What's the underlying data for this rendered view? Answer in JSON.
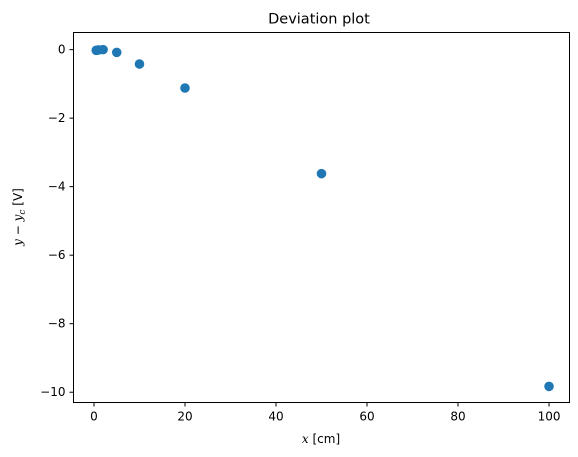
{
  "chart_data": {
    "type": "scatter",
    "title": "Deviation plot",
    "xlabel": {
      "var": "x",
      "unit": " [cm]"
    },
    "ylabel": {
      "var": "y",
      "minus": " − ",
      "sym": "y",
      "sub": "c",
      "unit": " [V]"
    },
    "xlim": [
      -4.5,
      104.5
    ],
    "ylim": [
      -10.3,
      0.5
    ],
    "xticks": [
      0,
      20,
      40,
      60,
      80,
      100
    ],
    "xtick_labels": [
      "0",
      "20",
      "40",
      "60",
      "80",
      "100"
    ],
    "yticks": [
      0,
      -2,
      -4,
      -6,
      -8,
      -10
    ],
    "ytick_labels": [
      "0",
      "−2",
      "−4",
      "−6",
      "−8",
      "−10"
    ],
    "grid": false,
    "marker_color": "#1f77b4",
    "points": [
      {
        "x": 0.5,
        "y": -0.02
      },
      {
        "x": 1,
        "y": -0.01
      },
      {
        "x": 2,
        "y": 0.0
      },
      {
        "x": 5,
        "y": -0.08
      },
      {
        "x": 10,
        "y": -0.42
      },
      {
        "x": 20,
        "y": -1.12
      },
      {
        "x": 50,
        "y": -3.62
      },
      {
        "x": 100,
        "y": -9.83
      }
    ]
  }
}
